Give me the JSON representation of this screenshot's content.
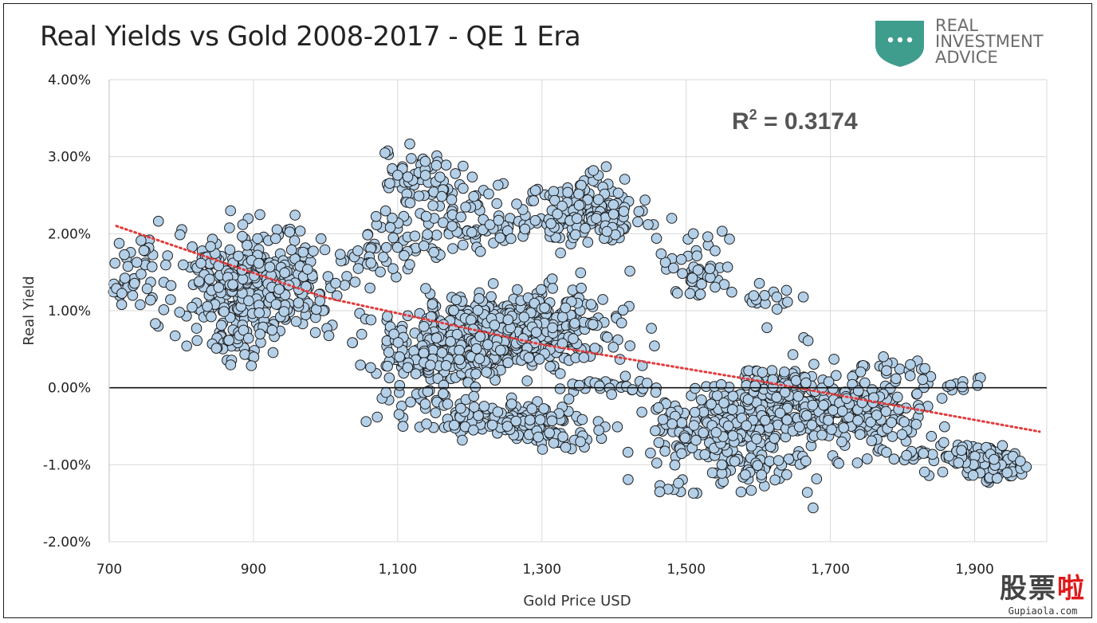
{
  "title": "Real Yields vs Gold 2008-2017 - QE 1 Era",
  "logo": {
    "icon": "shield-dots-icon",
    "color": "#3f9d8e",
    "lines": [
      "REAL",
      "INVESTMENT",
      "ADVICE"
    ]
  },
  "annotation": {
    "r2_prefix": "R",
    "r2_sup": "2",
    "r2_suffix": " = 0.3174"
  },
  "watermark": {
    "main_1": "股票",
    "main_2": "啦",
    "sub": "Gupiaola.com"
  },
  "chart_data": {
    "type": "scatter",
    "xlabel": "Gold Price USD",
    "ylabel": "Real Yield",
    "xlim": [
      700,
      2000
    ],
    "ylim": [
      -2.0,
      4.0
    ],
    "x_ticks": [
      700,
      900,
      1100,
      1300,
      1500,
      1700,
      1900
    ],
    "x_tick_labels": [
      "700",
      "900",
      "1,100",
      "1,300",
      "1,500",
      "1,700",
      "1,900"
    ],
    "y_ticks": [
      4,
      3,
      2,
      1,
      0,
      -1,
      -2
    ],
    "y_tick_labels": [
      "4.00%",
      "3.00%",
      "2.00%",
      "1.00%",
      "0.00%",
      "-1.00%",
      "-2.00%"
    ],
    "grid": true,
    "marker_fill": "#b4d0e8",
    "marker_edge": "#1e1e1e",
    "trendline": {
      "style": "dotted",
      "color": "#e23b3b",
      "points": [
        [
          710,
          2.1
        ],
        [
          1000,
          1.17
        ],
        [
          1300,
          0.56
        ],
        [
          1600,
          0.09
        ],
        [
          1990,
          -0.57
        ]
      ]
    },
    "clusters": [
      {
        "cx": 900,
        "cy": 1.35,
        "sx": 70,
        "sy": 0.38,
        "n": 380
      },
      {
        "cx": 740,
        "cy": 1.45,
        "sx": 25,
        "sy": 0.3,
        "n": 40
      },
      {
        "cx": 870,
        "cy": 0.55,
        "sx": 30,
        "sy": 0.15,
        "n": 30
      },
      {
        "cx": 1130,
        "cy": 2.75,
        "sx": 40,
        "sy": 0.2,
        "n": 60
      },
      {
        "cx": 1200,
        "cy": 2.15,
        "sx": 60,
        "sy": 0.3,
        "n": 90
      },
      {
        "cx": 1100,
        "cy": 1.95,
        "sx": 30,
        "sy": 0.25,
        "n": 30
      },
      {
        "cx": 1060,
        "cy": 1.65,
        "sx": 20,
        "sy": 0.12,
        "n": 15
      },
      {
        "cx": 1250,
        "cy": 0.75,
        "sx": 80,
        "sy": 0.28,
        "n": 560
      },
      {
        "cx": 1170,
        "cy": 0.35,
        "sx": 60,
        "sy": 0.18,
        "n": 120
      },
      {
        "cx": 1360,
        "cy": 2.25,
        "sx": 45,
        "sy": 0.3,
        "n": 150
      },
      {
        "cx": 1420,
        "cy": 2.1,
        "sx": 40,
        "sy": 0.15,
        "n": 20
      },
      {
        "cx": 1510,
        "cy": 1.45,
        "sx": 30,
        "sy": 0.2,
        "n": 45
      },
      {
        "cx": 1600,
        "cy": 1.15,
        "sx": 30,
        "sy": 0.1,
        "n": 15
      },
      {
        "cx": 1250,
        "cy": -0.45,
        "sx": 60,
        "sy": 0.14,
        "n": 140
      },
      {
        "cx": 1330,
        "cy": -0.65,
        "sx": 30,
        "sy": 0.1,
        "n": 30
      },
      {
        "cx": 1130,
        "cy": -0.2,
        "sx": 50,
        "sy": 0.15,
        "n": 35
      },
      {
        "cx": 1400,
        "cy": 0.0,
        "sx": 50,
        "sy": 0.08,
        "n": 30
      },
      {
        "cx": 1550,
        "cy": -0.55,
        "sx": 60,
        "sy": 0.25,
        "n": 220
      },
      {
        "cx": 1640,
        "cy": -0.2,
        "sx": 50,
        "sy": 0.28,
        "n": 180
      },
      {
        "cx": 1740,
        "cy": -0.35,
        "sx": 50,
        "sy": 0.25,
        "n": 170
      },
      {
        "cx": 1640,
        "cy": 0.05,
        "sx": 40,
        "sy": 0.1,
        "n": 40
      },
      {
        "cx": 1780,
        "cy": 0.25,
        "sx": 30,
        "sy": 0.1,
        "n": 20
      },
      {
        "cx": 1600,
        "cy": -1.1,
        "sx": 50,
        "sy": 0.2,
        "n": 40
      },
      {
        "cx": 1910,
        "cy": -0.95,
        "sx": 40,
        "sy": 0.12,
        "n": 120
      },
      {
        "cx": 1800,
        "cy": -0.9,
        "sx": 20,
        "sy": 0.05,
        "n": 12
      },
      {
        "cx": 1860,
        "cy": 0.05,
        "sx": 30,
        "sy": 0.1,
        "n": 12
      },
      {
        "cx": 1500,
        "cy": -1.3,
        "sx": 20,
        "sy": 0.08,
        "n": 8
      }
    ],
    "outliers": [
      [
        1612,
        0.78
      ],
      [
        1626,
        1.02
      ],
      [
        1648,
        0.43
      ],
      [
        1663,
        0.65
      ],
      [
        1669,
        0.61
      ],
      [
        1705,
        0.37
      ],
      [
        1760,
        -0.13
      ],
      [
        1820,
        -0.08
      ],
      [
        1831,
        0.25
      ],
      [
        1908,
        0.13
      ],
      [
        1904,
        0.03
      ],
      [
        1676,
        -1.56
      ],
      [
        1668,
        -1.36
      ],
      [
        1510,
        -1.37
      ],
      [
        1560,
        1.93
      ],
      [
        1180,
        2.78
      ],
      [
        1100,
        2.76
      ],
      [
        1510,
        2.0
      ],
      [
        1530,
        1.96
      ],
      [
        1480,
        2.2
      ],
      [
        1205,
        -0.55
      ],
      [
        1140,
        -0.47
      ]
    ]
  }
}
